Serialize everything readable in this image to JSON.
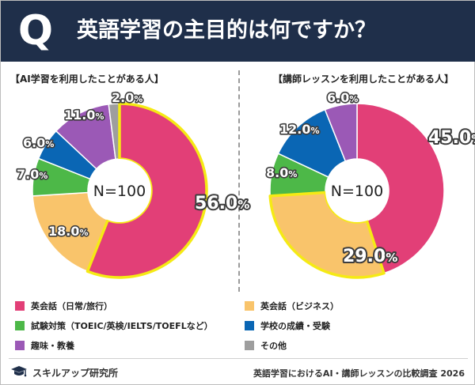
{
  "header": {
    "q_letter": "Q",
    "title": "英語学習の主目的は何ですか？",
    "bg_color": "#1f2f4a"
  },
  "center_label": "N=100",
  "legend": [
    {
      "label": "英会話（日常/旅行）",
      "color": "#e23f77"
    },
    {
      "label": "英会話（ビジネス）",
      "color": "#f9c46b"
    },
    {
      "label": "試験対策（TOEIC/英検/IELTS/TOEFLなど）",
      "color": "#4db848"
    },
    {
      "label": "学校の成績・受験",
      "color": "#0a66b4"
    },
    {
      "label": "趣味・教養",
      "color": "#9b59b6"
    },
    {
      "label": "その他",
      "color": "#9e9e9e"
    }
  ],
  "footer": {
    "brand": "スキルアップ研究所",
    "source": "英語学習におけるAI・講師レッスンの比較調査 2026"
  },
  "chart_data": [
    {
      "type": "pie",
      "title": "【AI学習を利用したことがある人】",
      "categories": [
        "英会話（日常/旅行）",
        "英会話（ビジネス）",
        "試験対策（TOEIC/英検/IELTS/TOEFLなど）",
        "学校の成績・受験",
        "趣味・教養",
        "その他"
      ],
      "values": [
        56.0,
        18.0,
        7.0,
        6.0,
        11.0,
        2.0
      ],
      "labels": [
        {
          "num": "56.0",
          "unit": "%"
        },
        {
          "num": "18.0",
          "unit": "%"
        },
        {
          "num": "7.0",
          "unit": "%"
        },
        {
          "num": "6.0",
          "unit": "%"
        },
        {
          "num": "11.0",
          "unit": "%"
        },
        {
          "num": "2.0",
          "unit": "%"
        }
      ],
      "colors": [
        "#e23f77",
        "#f9c46b",
        "#4db848",
        "#0a66b4",
        "#9b59b6",
        "#9e9e9e"
      ],
      "highlight_color": "#f5ea14",
      "highlighted": [
        0
      ]
    },
    {
      "type": "pie",
      "title": "【講師レッスンを利用したことがある人】",
      "categories": [
        "英会話（日常/旅行）",
        "英会話（ビジネス）",
        "試験対策（TOEIC/英検/IELTS/TOEFLなど）",
        "学校の成績・受験",
        "趣味・教養",
        "その他"
      ],
      "values": [
        45.0,
        29.0,
        8.0,
        12.0,
        6.0,
        0
      ],
      "labels": [
        {
          "num": "45.0",
          "unit": "%"
        },
        {
          "num": "29.0",
          "unit": "%"
        },
        {
          "num": "8.0",
          "unit": "%"
        },
        {
          "num": "12.0",
          "unit": "%"
        },
        {
          "num": "6.0",
          "unit": "%"
        },
        null
      ],
      "colors": [
        "#e23f77",
        "#f9c46b",
        "#4db848",
        "#0a66b4",
        "#9b59b6",
        "#9e9e9e"
      ],
      "highlight_color": "#f5ea14",
      "highlighted": [
        1
      ]
    }
  ]
}
